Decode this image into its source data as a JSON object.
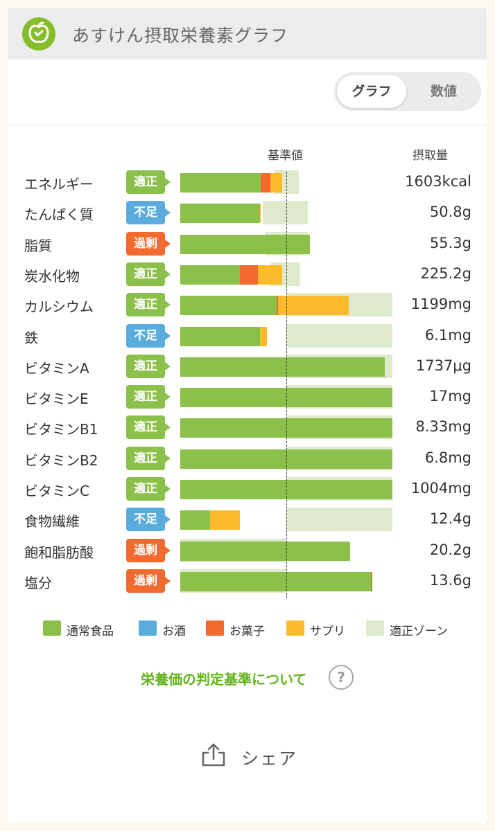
{
  "header": {
    "title": "あすけん摂取栄養素グラフ",
    "logo_icon": "apple-logo-icon",
    "logo_color": "#86bd2a"
  },
  "toggle": {
    "graph_label": "グラフ",
    "numeric_label": "数値",
    "selected": "グラフ"
  },
  "columns": {
    "reference": "基準値",
    "intake": "摂取量"
  },
  "colors": {
    "food": "#8bc04a",
    "alcohol": "#5aacdc",
    "snack": "#f26a2e",
    "supplement": "#fbbb2b",
    "zone": "#dfeacd",
    "status_ok": "#8bc04a",
    "status_low": "#5aacdc",
    "status_high": "#f26a2e",
    "link": "#64b31c"
  },
  "chart_data": {
    "type": "bar",
    "stacked": true,
    "orientation": "horizontal",
    "reference_line": "基準値",
    "series_names": [
      "通常食品",
      "お酒",
      "お菓子",
      "サプリ"
    ],
    "nutrients": [
      {
        "name": "エネルギー",
        "status": "適正",
        "status_type": "ok",
        "value": "1603kcal",
        "food": 0.76,
        "alcohol": 0,
        "snack": 0.09,
        "supplement": 0.11,
        "zone": [
          0.88,
          1.12
        ]
      },
      {
        "name": "たんぱく質",
        "status": "不足",
        "status_type": "low",
        "value": "50.8g",
        "food": 0.75,
        "alcohol": 0,
        "snack": 0,
        "supplement": 0.01,
        "zone": [
          0.78,
          1.2
        ]
      },
      {
        "name": "脂質",
        "status": "過剰",
        "status_type": "high",
        "value": "55.3g",
        "food": 1.22,
        "alcohol": 0,
        "snack": 0,
        "supplement": 0,
        "zone": [
          0.8,
          1.2
        ]
      },
      {
        "name": "炭水化物",
        "status": "適正",
        "status_type": "ok",
        "value": "225.2g",
        "food": 0.56,
        "alcohol": 0,
        "snack": 0.17,
        "supplement": 0.23,
        "zone": [
          0.85,
          1.13
        ]
      },
      {
        "name": "カルシウム",
        "status": "適正",
        "status_type": "ok",
        "value": "1199mg",
        "food": 0.91,
        "alcohol": 0,
        "snack": 0.01,
        "supplement": 0.67,
        "zone": [
          1.0,
          2.0
        ]
      },
      {
        "name": "鉄",
        "status": "不足",
        "status_type": "low",
        "value": "6.1mg",
        "food": 0.75,
        "alcohol": 0,
        "snack": 0,
        "supplement": 0.07,
        "zone": [
          1.0,
          2.0
        ]
      },
      {
        "name": "ビタミンA",
        "status": "適正",
        "status_type": "ok",
        "value": "1737μg",
        "food": 1.93,
        "alcohol": 0,
        "snack": 0,
        "supplement": 0,
        "zone": [
          1.0,
          2.0
        ]
      },
      {
        "name": "ビタミンE",
        "status": "適正",
        "status_type": "ok",
        "value": "17mg",
        "food": 2.0,
        "alcohol": 0,
        "snack": 0,
        "supplement": 0,
        "zone": [
          1.0,
          2.0
        ]
      },
      {
        "name": "ビタミンB1",
        "status": "適正",
        "status_type": "ok",
        "value": "8.33mg",
        "food": 2.0,
        "alcohol": 0,
        "snack": 0,
        "supplement": 0,
        "zone": [
          1.0,
          2.0
        ]
      },
      {
        "name": "ビタミンB2",
        "status": "適正",
        "status_type": "ok",
        "value": "6.8mg",
        "food": 2.0,
        "alcohol": 0,
        "snack": 0,
        "supplement": 0,
        "zone": [
          1.0,
          2.0
        ]
      },
      {
        "name": "ビタミンC",
        "status": "適正",
        "status_type": "ok",
        "value": "1004mg",
        "food": 2.0,
        "alcohol": 0,
        "snack": 0,
        "supplement": 0,
        "zone": [
          1.0,
          2.0
        ]
      },
      {
        "name": "食物繊維",
        "status": "不足",
        "status_type": "low",
        "value": "12.4g",
        "food": 0.28,
        "alcohol": 0,
        "snack": 0,
        "supplement": 0.28,
        "zone": [
          1.0,
          2.0
        ]
      },
      {
        "name": "飽和脂肪酸",
        "status": "過剰",
        "status_type": "high",
        "value": "20.2g",
        "food": 1.6,
        "alcohol": 0,
        "snack": 0,
        "supplement": 0,
        "zone": [
          0,
          1.0
        ]
      },
      {
        "name": "塩分",
        "status": "過剰",
        "status_type": "high",
        "value": "13.6g",
        "food": 1.8,
        "alcohol": 0,
        "snack": 0.01,
        "supplement": 0,
        "zone": [
          0,
          1.0
        ]
      }
    ]
  },
  "legend": [
    {
      "label": "通常食品",
      "color": "#8bc04a"
    },
    {
      "label": "お酒",
      "color": "#5aacdc"
    },
    {
      "label": "お菓子",
      "color": "#f26a2e"
    },
    {
      "label": "サプリ",
      "color": "#fbbb2b"
    },
    {
      "label": "適正ゾーン",
      "color": "#dfeacd"
    }
  ],
  "criteria_link": {
    "label": "栄養価の判定基準について",
    "help_icon": "question-circle-icon",
    "help_label": "?"
  },
  "share": {
    "label": "シェア",
    "icon": "share-upload-icon"
  }
}
